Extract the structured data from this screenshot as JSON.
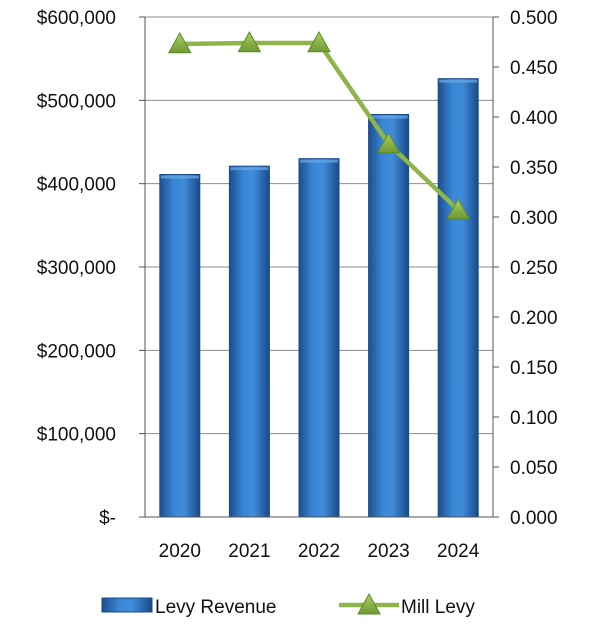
{
  "chart_data": {
    "type": "bar",
    "categories": [
      "2020",
      "2021",
      "2022",
      "2023",
      "2024"
    ],
    "series": [
      {
        "name": "Levy Revenue",
        "type": "bar",
        "axis": "left",
        "values": [
          411000,
          421000,
          430000,
          483000,
          526000
        ],
        "color": "#2f78c4"
      },
      {
        "name": "Mill Levy",
        "type": "line",
        "axis": "right",
        "marker": "triangle",
        "values": [
          0.473,
          0.474,
          0.474,
          0.373,
          0.307
        ],
        "color": "#8db54a"
      }
    ],
    "y_left": {
      "ylim": [
        0,
        600000
      ],
      "ticks": [
        "$-",
        "$100,000",
        "$200,000",
        "$300,000",
        "$400,000",
        "$500,000",
        "$600,000"
      ]
    },
    "y_right": {
      "ylim": [
        0,
        0.5
      ],
      "ticks": [
        "0.000",
        "0.050",
        "0.100",
        "0.150",
        "0.200",
        "0.250",
        "0.300",
        "0.350",
        "0.400",
        "0.450",
        "0.500"
      ]
    },
    "gridlines": true,
    "legend": {
      "position": "bottom",
      "entries": [
        "Levy Revenue",
        "Mill Levy"
      ]
    }
  }
}
